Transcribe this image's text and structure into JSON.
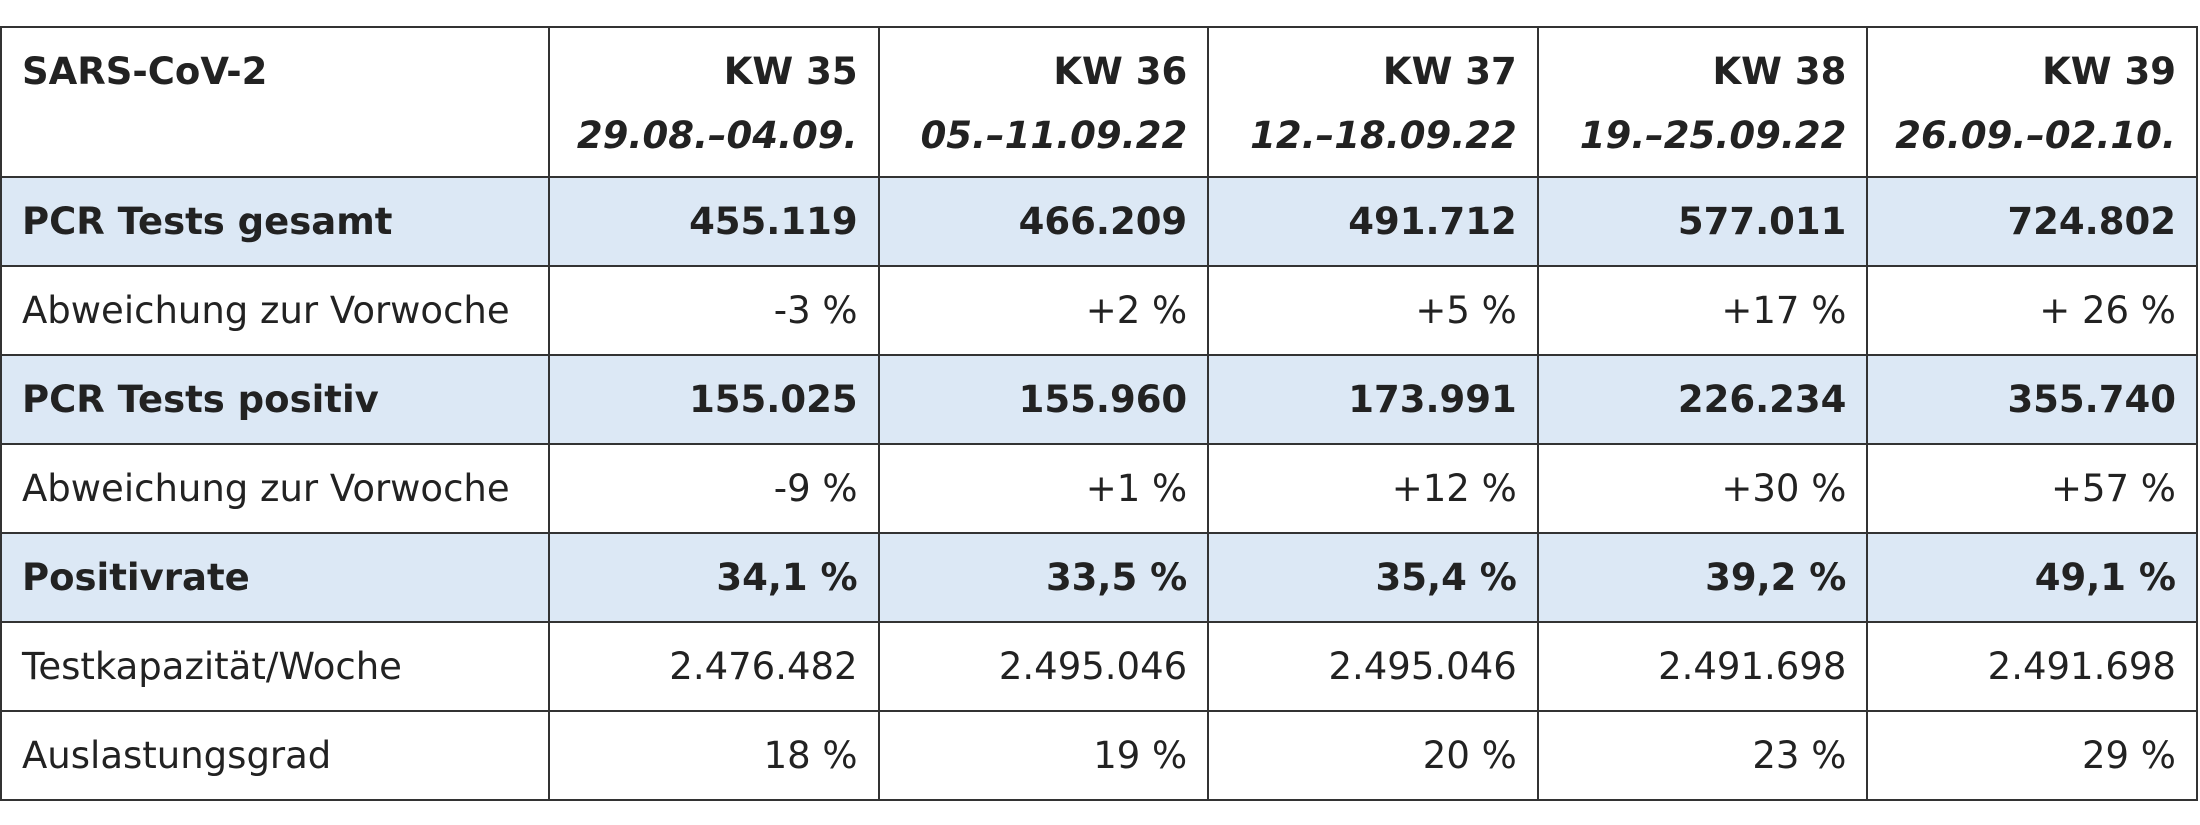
{
  "table": {
    "header_label": "SARS-CoV-2",
    "weeks": [
      {
        "kw": "KW 35",
        "dates": "29.08.–04.09."
      },
      {
        "kw": "KW 36",
        "dates": "05.–11.09.22"
      },
      {
        "kw": "KW 37",
        "dates": "12.–18.09.22"
      },
      {
        "kw": "KW 38",
        "dates": "19.–25.09.22"
      },
      {
        "kw": "KW 39",
        "dates": "26.09.–02.10."
      }
    ],
    "rows": [
      {
        "label": "PCR Tests gesamt",
        "highlight": true,
        "values": [
          "455.119",
          "466.209",
          "491.712",
          "577.011",
          "724.802"
        ]
      },
      {
        "label": "Abweichung zur Vorwoche",
        "highlight": false,
        "values": [
          "-3 %",
          "+2 %",
          "+5 %",
          "+17 %",
          "+ 26 %"
        ]
      },
      {
        "label": "PCR Tests positiv",
        "highlight": true,
        "values": [
          "155.025",
          "155.960",
          "173.991",
          "226.234",
          "355.740"
        ]
      },
      {
        "label": "Abweichung zur Vorwoche",
        "highlight": false,
        "values": [
          "-9 %",
          "+1 %",
          "+12 %",
          "+30 %",
          "+57 %"
        ]
      },
      {
        "label": "Positivrate",
        "highlight": true,
        "values": [
          "34,1 %",
          "33,5 %",
          "35,4 %",
          "39,2 %",
          "49,1 %"
        ]
      },
      {
        "label": "Testkapazität/Woche",
        "highlight": false,
        "values": [
          "2.476.482",
          "2.495.046",
          "2.495.046",
          "2.491.698",
          "2.491.698"
        ]
      },
      {
        "label": "Auslastungsgrad",
        "highlight": false,
        "values": [
          "18 %",
          "19 %",
          "20 %",
          "23 %",
          "29 %"
        ]
      }
    ],
    "colors": {
      "highlight_bg": "#dce8f5",
      "border": "#333333",
      "text": "#222222"
    }
  }
}
